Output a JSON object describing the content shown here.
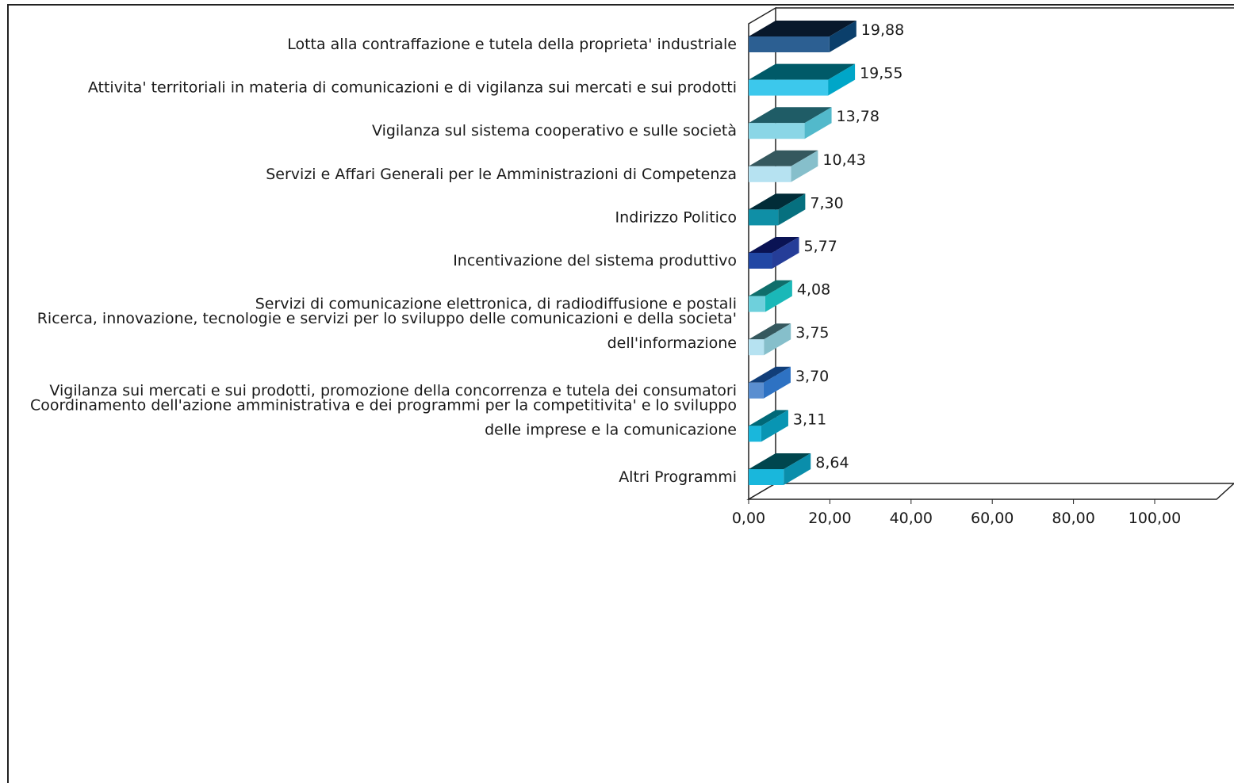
{
  "chart_data": {
    "type": "bar",
    "orientation": "horizontal",
    "three_d": true,
    "categories": [
      [
        "Lotta alla contraffazione e tutela della proprieta' industriale"
      ],
      [
        "Attivita' territoriali in materia di comunicazioni e di vigilanza sui mercati e sui prodotti"
      ],
      [
        "Vigilanza sul sistema cooperativo e sulle società"
      ],
      [
        "Servizi e Affari Generali per le Amministrazioni di Competenza"
      ],
      [
        "Indirizzo Politico"
      ],
      [
        "Incentivazione del sistema produttivo"
      ],
      [
        "Servizi di comunicazione elettronica, di radiodiffusione e postali"
      ],
      [
        "Ricerca, innovazione, tecnologie e servizi per lo sviluppo delle comunicazioni e della societa'",
        "dell'informazione"
      ],
      [
        "Vigilanza sui mercati e sui prodotti, promozione della concorrenza e tutela dei consumatori"
      ],
      [
        "Coordinamento dell'azione amministrativa e dei programmi per la competitivita' e lo sviluppo",
        "delle imprese e la comunicazione"
      ],
      [
        "Altri Programmi"
      ]
    ],
    "values": [
      19.88,
      19.55,
      13.78,
      10.43,
      7.3,
      5.77,
      4.08,
      3.75,
      3.7,
      3.11,
      8.64
    ],
    "value_labels": [
      "19,88",
      "19,55",
      "13,78",
      "10,43",
      "7,30",
      "5,77",
      "4,08",
      "3,75",
      "3,70",
      "3,11",
      "8,64"
    ],
    "colors": [
      {
        "front": "#2c5f92",
        "top": "#08182b",
        "side": "#0b3f6b"
      },
      {
        "front": "#3cc8ec",
        "top": "#005a68",
        "side": "#00a6c8"
      },
      {
        "front": "#8ad6e6",
        "top": "#1f5c66",
        "side": "#52b9cb"
      },
      {
        "front": "#b6e2f1",
        "top": "#35585e",
        "side": "#86bfcb"
      },
      {
        "front": "#0f8fa6",
        "top": "#012c38",
        "side": "#06707f"
      },
      {
        "front": "#2147a4",
        "top": "#0a1354",
        "side": "#253d98"
      },
      {
        "front": "#6ed0dc",
        "top": "#0f6e6b",
        "side": "#1ab8b8"
      },
      {
        "front": "#b6e2f1",
        "top": "#35585e",
        "side": "#86bfcb"
      },
      {
        "front": "#5a8ed0",
        "top": "#113e79",
        "side": "#2e72c3"
      },
      {
        "front": "#19b7dc",
        "top": "#006978",
        "side": "#0895b3"
      },
      {
        "front": "#19b7dc",
        "top": "#00464e",
        "side": "#0a8eab"
      }
    ],
    "xlim": [
      0,
      100
    ],
    "xticks": [
      0,
      20,
      40,
      60,
      80,
      100
    ],
    "xtick_labels": [
      "0,00",
      "20,00",
      "40,00",
      "60,00",
      "80,00",
      "100,00"
    ],
    "title": "",
    "xlabel": "",
    "ylabel": "",
    "grid": false,
    "legend": "none"
  }
}
